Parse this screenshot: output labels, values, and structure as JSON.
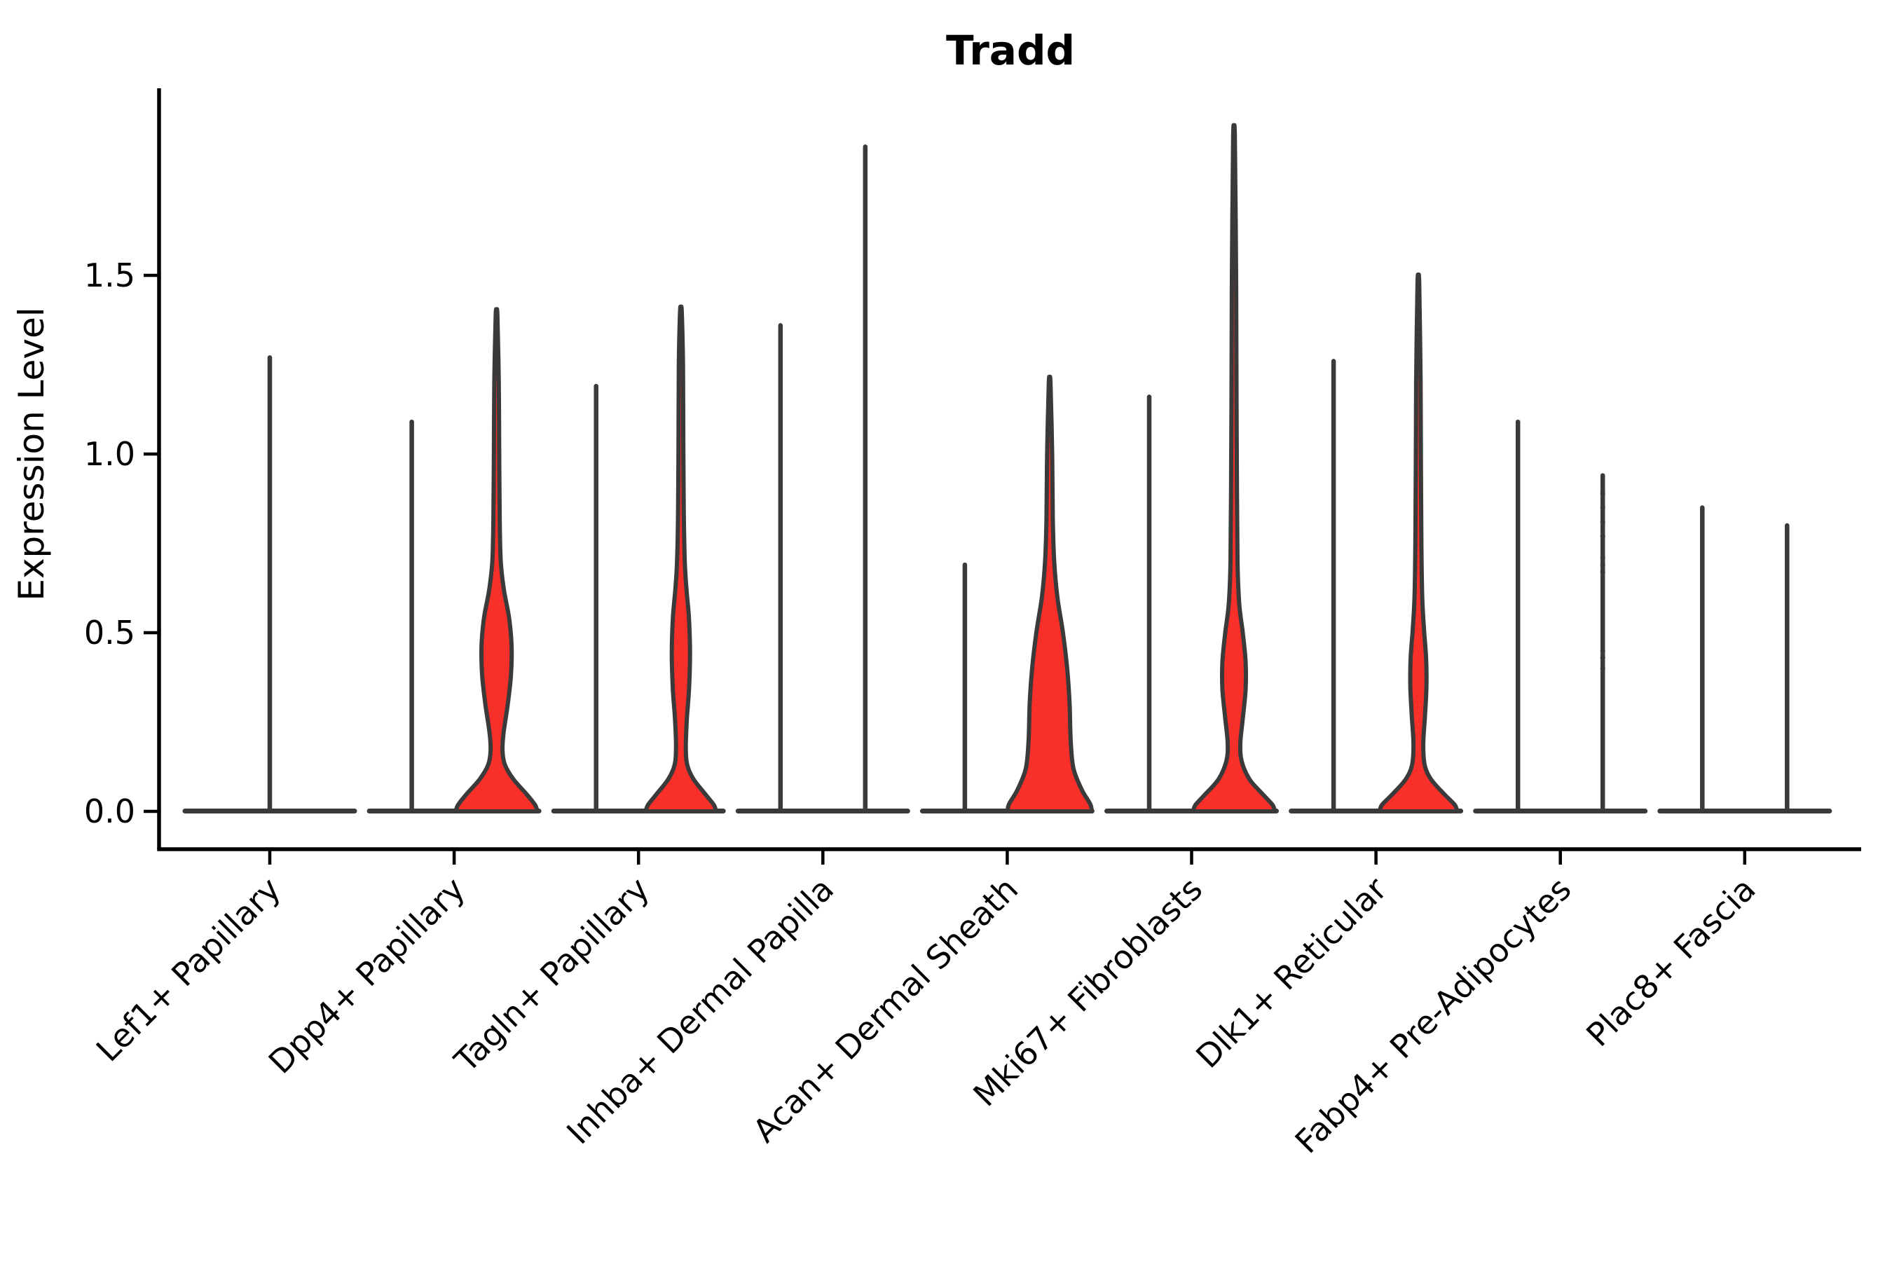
{
  "chart_data": {
    "type": "violin",
    "title": "Tradd",
    "ylabel": "Expression Level",
    "xlabel": "",
    "yticks": [
      "0.0",
      "0.5",
      "1.0",
      "1.5"
    ],
    "ytick_values": [
      0.0,
      0.5,
      1.0,
      1.5
    ],
    "ylim": [
      -0.11,
      2.02
    ],
    "grid": false,
    "legend": "none",
    "colors": {
      "fill": "#F9302A",
      "outline": "#3A3A3A",
      "axis": "#000000"
    },
    "categories": [
      {
        "label": "Lef1+ Papillary",
        "spikes": [
          {
            "offset": 0,
            "max": 1.27
          }
        ]
      },
      {
        "label": "Dpp4+ Papillary",
        "spikes": [
          {
            "offset": -60.5,
            "max": 1.09
          }
        ],
        "violin": {
          "offset": 60.5,
          "max": 1.39,
          "profile": [
            [
              0.0,
              58
            ],
            [
              0.018,
              55
            ],
            [
              0.05,
              42
            ],
            [
              0.09,
              24
            ],
            [
              0.13,
              12
            ],
            [
              0.17,
              8.5
            ],
            [
              0.22,
              10
            ],
            [
              0.3,
              16
            ],
            [
              0.38,
              20.5
            ],
            [
              0.46,
              21.5
            ],
            [
              0.54,
              18
            ],
            [
              0.62,
              10.5
            ],
            [
              0.7,
              6
            ],
            [
              0.82,
              4.5
            ],
            [
              1.0,
              3.8
            ],
            [
              1.2,
              3.2
            ],
            [
              1.39,
              1.2
            ]
          ]
        }
      },
      {
        "label": "Tagln+ Papillary",
        "spikes": [
          {
            "offset": -60.5,
            "max": 1.19
          }
        ],
        "violin": {
          "offset": 60.5,
          "max": 1.4,
          "profile": [
            [
              0.0,
              50
            ],
            [
              0.018,
              47
            ],
            [
              0.05,
              34
            ],
            [
              0.09,
              18
            ],
            [
              0.13,
              9
            ],
            [
              0.18,
              7
            ],
            [
              0.26,
              8.5
            ],
            [
              0.34,
              11.5
            ],
            [
              0.44,
              13
            ],
            [
              0.54,
              11.5
            ],
            [
              0.62,
              8
            ],
            [
              0.7,
              5.5
            ],
            [
              0.85,
              4
            ],
            [
              1.05,
              3.4
            ],
            [
              1.25,
              3
            ],
            [
              1.4,
              1.2
            ]
          ]
        }
      },
      {
        "label": "Inhba+ Dermal Papilla",
        "spikes": [
          {
            "offset": -60.5,
            "max": 1.36
          },
          {
            "offset": 60.5,
            "max": 1.86
          }
        ]
      },
      {
        "label": "Acan+ Dermal Sheath",
        "spikes": [
          {
            "offset": -60.5,
            "max": 0.69
          }
        ],
        "violin": {
          "offset": 60.5,
          "max": 1.2,
          "profile": [
            [
              0.0,
              60
            ],
            [
              0.02,
              58
            ],
            [
              0.06,
              46
            ],
            [
              0.12,
              34
            ],
            [
              0.2,
              30
            ],
            [
              0.3,
              28.5
            ],
            [
              0.4,
              25
            ],
            [
              0.5,
              19
            ],
            [
              0.6,
              11
            ],
            [
              0.7,
              6.5
            ],
            [
              0.82,
              4.5
            ],
            [
              1.0,
              3.6
            ],
            [
              1.2,
              1.2
            ]
          ]
        }
      },
      {
        "label": "Mki67+ Fibroblasts",
        "spikes": [
          {
            "offset": -60.5,
            "max": 1.16
          }
        ],
        "violin": {
          "offset": 60.5,
          "max": 1.89,
          "profile": [
            [
              0.0,
              58
            ],
            [
              0.018,
              55
            ],
            [
              0.05,
              40
            ],
            [
              0.09,
              22
            ],
            [
              0.14,
              11
            ],
            [
              0.19,
              9
            ],
            [
              0.26,
              12.5
            ],
            [
              0.34,
              16.5
            ],
            [
              0.42,
              16.5
            ],
            [
              0.5,
              12.5
            ],
            [
              0.58,
              7.5
            ],
            [
              0.7,
              5
            ],
            [
              0.9,
              4.2
            ],
            [
              1.15,
              3.6
            ],
            [
              1.5,
              3
            ],
            [
              1.89,
              1.2
            ]
          ]
        }
      },
      {
        "label": "Dlk1+ Reticular",
        "spikes": [
          {
            "offset": -60.5,
            "max": 1.26
          }
        ],
        "violin": {
          "offset": 60.5,
          "max": 1.48,
          "profile": [
            [
              0.0,
              55
            ],
            [
              0.018,
              52
            ],
            [
              0.05,
              36
            ],
            [
              0.09,
              18
            ],
            [
              0.13,
              9
            ],
            [
              0.19,
              7
            ],
            [
              0.27,
              9.5
            ],
            [
              0.35,
              11.5
            ],
            [
              0.43,
              11
            ],
            [
              0.51,
              8
            ],
            [
              0.6,
              5.5
            ],
            [
              0.75,
              4.3
            ],
            [
              0.95,
              3.7
            ],
            [
              1.2,
              3.2
            ],
            [
              1.48,
              1.2
            ]
          ]
        }
      },
      {
        "label": "Fabp4+ Pre-Adipocytes",
        "spikes": [
          {
            "offset": -60.5,
            "max": 1.09
          },
          {
            "offset": 60.5,
            "max": 0.94
          }
        ],
        "points": {
          "offset": 60.5,
          "values": [
            0.89,
            0.85,
            0.81,
            0.77,
            0.71,
            0.69,
            0.67,
            0.45,
            0.43,
            0.4
          ]
        }
      },
      {
        "label": "Plac8+ Fascia",
        "spikes": [
          {
            "offset": -60.5,
            "max": 0.85
          },
          {
            "offset": 60.5,
            "max": 0.8
          }
        ]
      }
    ]
  }
}
